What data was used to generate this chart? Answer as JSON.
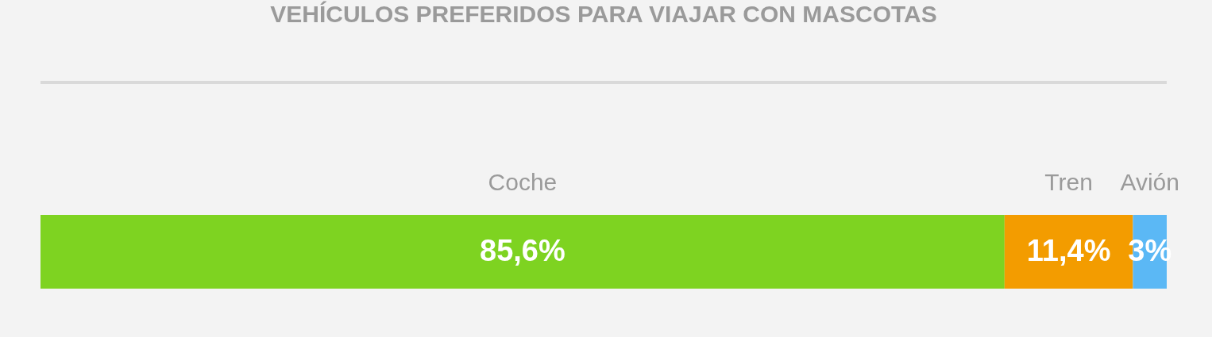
{
  "chart_data": {
    "type": "bar",
    "title": "VEHÍCULOS PREFERIDOS PARA VIAJAR CON MASCOTAS",
    "orientation": "horizontal",
    "stacked": true,
    "categories": [
      null
    ],
    "tick_labels": false,
    "series": [
      {
        "name": "Coche",
        "color": "#7ed321",
        "values": [
          85.6
        ],
        "value_labels": [
          "85,6%"
        ]
      },
      {
        "name": "Tren",
        "color": "#f39c00",
        "values": [
          11.4
        ],
        "value_labels": [
          "11,4%"
        ]
      },
      {
        "name": "Avión",
        "color": "#5bb8f5",
        "values": [
          3
        ],
        "value_labels": [
          "3%"
        ]
      }
    ]
  }
}
